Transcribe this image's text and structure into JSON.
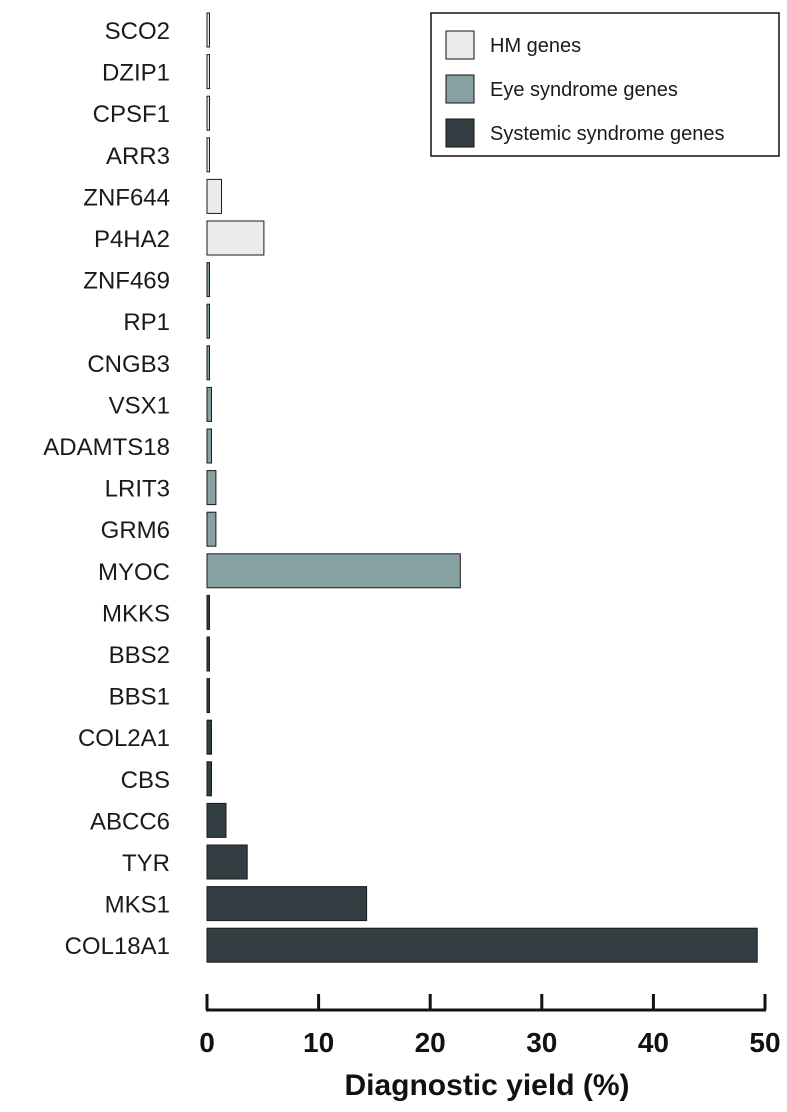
{
  "chart_data": {
    "type": "bar",
    "orientation": "horizontal",
    "categories": [
      "SCO2",
      "DZIP1",
      "CPSF1",
      "ARR3",
      "ZNF644",
      "P4HA2",
      "ZNF469",
      "RP1",
      "CNGB3",
      "VSX1",
      "ADAMTS18",
      "LRIT3",
      "GRM6",
      "MYOC",
      "MKKS",
      "BBS2",
      "BBS1",
      "COL2A1",
      "CBS",
      "ABCC6",
      "TYR",
      "MKS1",
      "COL18A1"
    ],
    "values": [
      0.2,
      0.2,
      0.2,
      0.2,
      1.3,
      5.1,
      0.2,
      0.2,
      0.2,
      0.4,
      0.4,
      0.8,
      0.8,
      22.7,
      0.2,
      0.2,
      0.2,
      0.4,
      0.4,
      1.7,
      3.6,
      14.3,
      49.3
    ],
    "groups": [
      "HM genes",
      "HM genes",
      "HM genes",
      "HM genes",
      "HM genes",
      "HM genes",
      "Eye syndrome genes",
      "Eye syndrome genes",
      "Eye syndrome genes",
      "Eye syndrome genes",
      "Eye syndrome genes",
      "Eye syndrome genes",
      "Eye syndrome genes",
      "Eye syndrome genes",
      "Systemic syndrome genes",
      "Systemic syndrome genes",
      "Systemic syndrome genes",
      "Systemic syndrome genes",
      "Systemic syndrome genes",
      "Systemic syndrome genes",
      "Systemic syndrome genes",
      "Systemic syndrome genes",
      "Systemic syndrome genes"
    ],
    "legend": [
      {
        "name": "HM genes",
        "color": "#eaecec"
      },
      {
        "name": "Eye syndrome genes",
        "color": "#87a0a2"
      },
      {
        "name": "Systemic syndrome genes",
        "color": "#323e42"
      }
    ],
    "legend_position": "top-right",
    "xlabel": "Diagnostic yield  (%)",
    "ylabel": "",
    "xlim": [
      0,
      50
    ],
    "xticks": [
      "0",
      "10",
      "20",
      "30",
      "40",
      "50"
    ],
    "grid": false
  }
}
